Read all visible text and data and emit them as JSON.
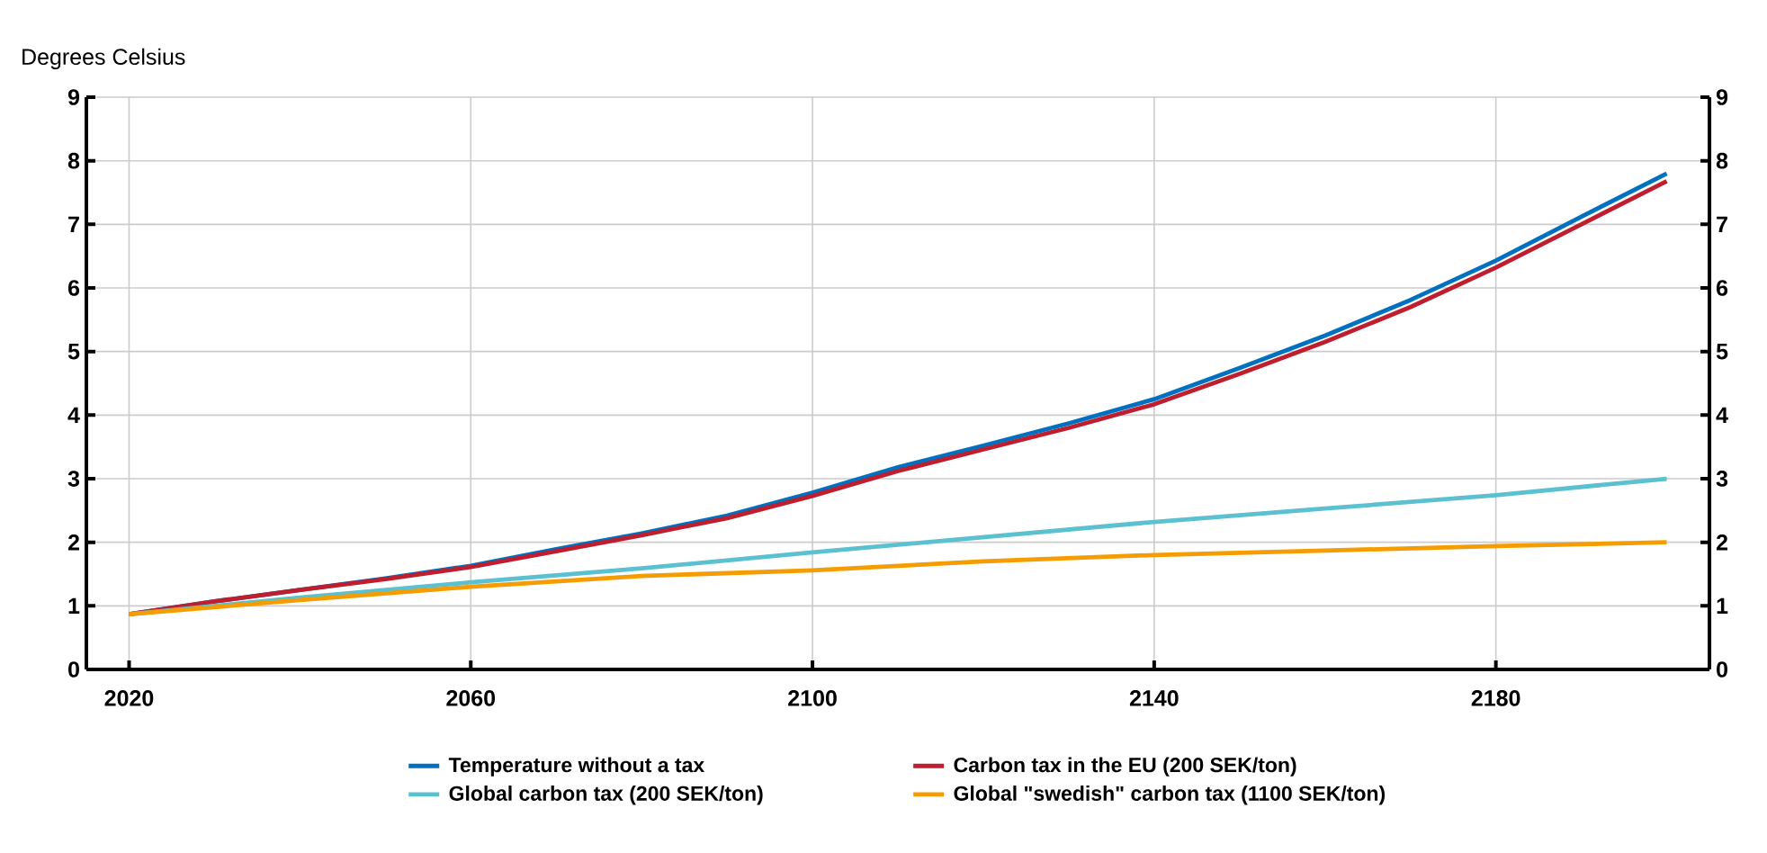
{
  "chart_data": {
    "type": "line",
    "ylabel": "Degrees Celsius",
    "x": [
      2020,
      2030,
      2040,
      2050,
      2060,
      2070,
      2080,
      2090,
      2100,
      2110,
      2120,
      2130,
      2140,
      2150,
      2160,
      2170,
      2180,
      2190,
      2200
    ],
    "series": [
      {
        "name": "Temperature without a tax",
        "color": "#0070c0",
        "values": [
          0.87,
          1.07,
          1.25,
          1.43,
          1.63,
          1.89,
          2.14,
          2.42,
          2.78,
          3.18,
          3.52,
          3.87,
          4.25,
          4.74,
          5.25,
          5.81,
          6.43,
          7.12,
          7.8
        ]
      },
      {
        "name": "Carbon tax in the EU (200 SEK/ton)",
        "color": "#be1e2d",
        "values": [
          0.87,
          1.07,
          1.25,
          1.42,
          1.61,
          1.86,
          2.11,
          2.38,
          2.73,
          3.12,
          3.46,
          3.8,
          4.17,
          4.65,
          5.15,
          5.7,
          6.32,
          7.0,
          7.68
        ]
      },
      {
        "name": "Global carbon tax (200 SEK/ton)",
        "color": "#5bc0cf",
        "x": [
          2020,
          2040,
          2060,
          2080,
          2100,
          2120,
          2140,
          2160,
          2180,
          2200
        ],
        "values": [
          0.87,
          1.13,
          1.37,
          1.59,
          1.84,
          2.08,
          2.32,
          2.53,
          2.74,
          3.0
        ]
      },
      {
        "name": "Global \"swedish\" carbon tax (1100 SEK/ton)",
        "color": "#f59c00",
        "x": [
          2020,
          2040,
          2060,
          2080,
          2100,
          2120,
          2140,
          2160,
          2180,
          2200
        ],
        "values": [
          0.87,
          1.09,
          1.3,
          1.47,
          1.56,
          1.7,
          1.8,
          1.87,
          1.94,
          2.0
        ]
      }
    ],
    "xlim": [
      2015,
      2205
    ],
    "xticks": [
      2020,
      2060,
      2100,
      2140,
      2180
    ],
    "ylim": [
      0,
      9
    ],
    "yticks": [
      0,
      1,
      2,
      3,
      4,
      5,
      6,
      7,
      8,
      9
    ],
    "y2lim": [
      0,
      9
    ],
    "y2ticks": [
      0,
      1,
      2,
      3,
      4,
      5,
      6,
      7,
      8,
      9
    ],
    "grid": true,
    "legend": "bottom",
    "marker": "none",
    "line_style": "solid"
  }
}
